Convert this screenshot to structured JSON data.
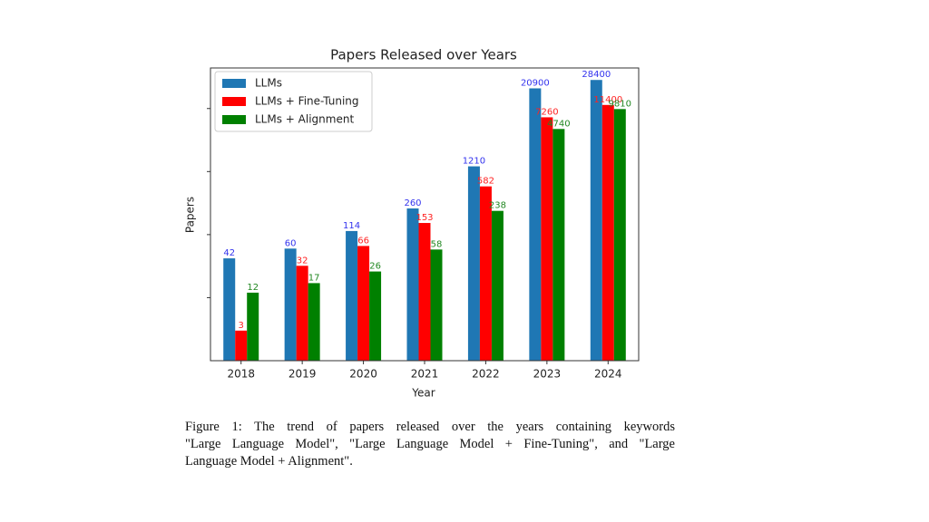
{
  "chart_data": {
    "type": "bar",
    "title": "Papers Released over Years",
    "x_label": "Year",
    "y_label": "Papers",
    "categories": [
      "2018",
      "2019",
      "2020",
      "2021",
      "2022",
      "2023",
      "2024"
    ],
    "series": [
      {
        "name": "LLMs",
        "color": "#1f77b4",
        "label_color": "#3333ee",
        "values": [
          42,
          60,
          114,
          260,
          1210,
          20900,
          28400
        ]
      },
      {
        "name": "LLMs + Fine-Tuning",
        "color": "#ff0000",
        "label_color": "#ff2222",
        "values": [
          3,
          32,
          66,
          153,
          582,
          7260,
          11400
        ]
      },
      {
        "name": "LLMs + Alignment",
        "color": "#008000",
        "label_color": "#228822",
        "values": [
          12,
          17,
          26,
          58,
          238,
          4740,
          9810
        ]
      }
    ],
    "ylim": [
      1,
      44000
    ],
    "yticks": [
      10,
      100,
      1000,
      10000
    ],
    "log_scale": true,
    "grid": false,
    "legend": "upper left"
  },
  "caption_lines": [
    "Figure 1:  The trend of papers released over the years containing keywords",
    "\"Large Language Model\", \"Large Language Model + Fine-Tuning\", and \"Large",
    "Language Model + Alignment\"."
  ]
}
